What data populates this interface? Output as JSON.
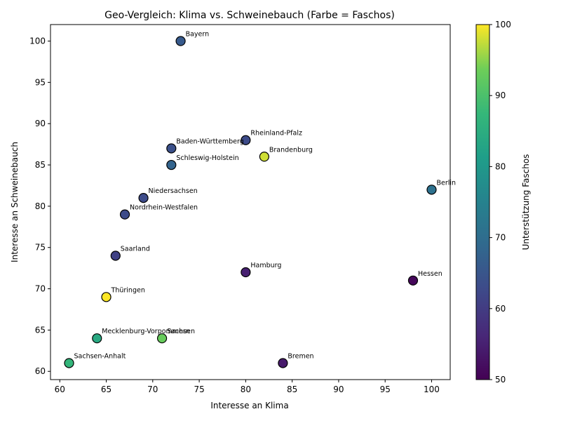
{
  "chart_data": {
    "type": "scatter",
    "title": "Geo-Vergleich: Klima vs. Schweinebauch (Farbe = Faschos)",
    "xlabel": "Interesse an Klima",
    "ylabel": "Interesse an Schweinebauch",
    "colorbar_label": "Unterstützung Faschos",
    "xlim": [
      59,
      102
    ],
    "ylim": [
      59,
      102
    ],
    "clim": [
      50,
      100
    ],
    "colormap": "viridis",
    "x_ticks": [
      60,
      65,
      70,
      75,
      80,
      85,
      90,
      95,
      100
    ],
    "y_ticks": [
      60,
      65,
      70,
      75,
      80,
      85,
      90,
      95,
      100
    ],
    "color_ticks": [
      50,
      60,
      70,
      80,
      90,
      100
    ],
    "grid": false,
    "points": [
      {
        "label": "Bayern",
        "x": 73,
        "y": 100,
        "c": 66
      },
      {
        "label": "Rheinland-Pfalz",
        "x": 80,
        "y": 88,
        "c": 63
      },
      {
        "label": "Baden-Württemberg",
        "x": 72,
        "y": 87,
        "c": 64
      },
      {
        "label": "Brandenburg",
        "x": 82,
        "y": 86,
        "c": 98
      },
      {
        "label": "Schleswig-Holstein",
        "x": 72,
        "y": 85,
        "c": 68
      },
      {
        "label": "Berlin",
        "x": 100,
        "y": 82,
        "c": 71
      },
      {
        "label": "Niedersachsen",
        "x": 69,
        "y": 81,
        "c": 63
      },
      {
        "label": "Nordrhein-Westfalen",
        "x": 67,
        "y": 79,
        "c": 63
      },
      {
        "label": "Saarland",
        "x": 66,
        "y": 74,
        "c": 61
      },
      {
        "label": "Hamburg",
        "x": 80,
        "y": 72,
        "c": 55
      },
      {
        "label": "Hessen",
        "x": 98,
        "y": 71,
        "c": 51
      },
      {
        "label": "Thüringen",
        "x": 65,
        "y": 69,
        "c": 100
      },
      {
        "label": "Mecklenburg-Vorpommern",
        "x": 64,
        "y": 64,
        "c": 84
      },
      {
        "label": "Sachsen",
        "x": 71,
        "y": 64,
        "c": 93
      },
      {
        "label": "Sachsen-Anhalt",
        "x": 61,
        "y": 61,
        "c": 87
      },
      {
        "label": "Bremen",
        "x": 84,
        "y": 61,
        "c": 54
      }
    ]
  }
}
